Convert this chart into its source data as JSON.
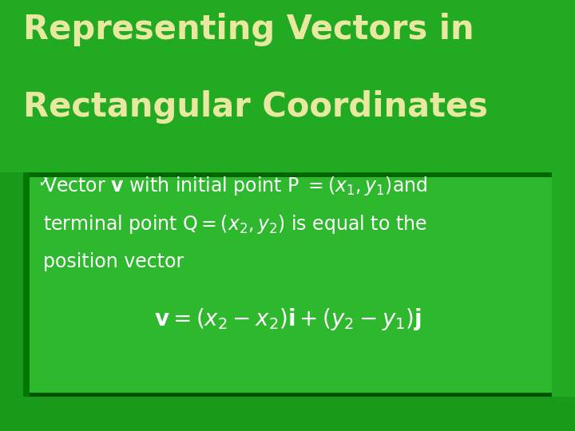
{
  "title_line1": "Representing Vectors in",
  "title_line2": "Rectangular Coordinates",
  "title_color": "#e8e8a0",
  "bg_color": "#22aa22",
  "box_bg": "#33cc33",
  "left_bar_color": "#007700",
  "top_line_color": "#006600",
  "bottom_bar_color": "#005500",
  "text_color": "#ffffff",
  "title_fontsize": 30,
  "body_fontsize": 17,
  "formula_fontsize": 20
}
